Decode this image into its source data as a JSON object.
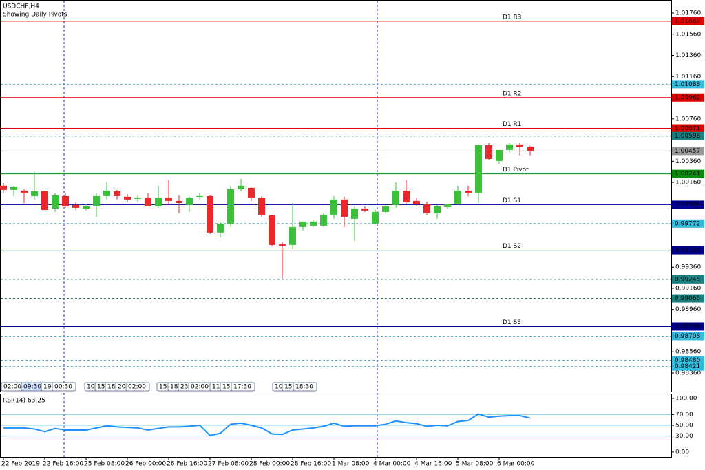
{
  "chart_data": [
    {
      "type": "candlestick",
      "title": "USDCHF,H4",
      "subtitle": "Showing Daily Pivots",
      "up_color": "#3cc03c",
      "down_color": "#e8282a",
      "ylim": [
        0.98178,
        1.01864
      ],
      "yticks": [
        {
          "value": 1.0176,
          "label": "1.01760"
        },
        {
          "value": 1.0156,
          "label": "1.01560"
        },
        {
          "value": 1.0136,
          "label": "1.01360"
        },
        {
          "value": 1.0116,
          "label": "1.01160"
        },
        {
          "value": 1.0076,
          "label": "1.00760"
        },
        {
          "value": 1.0036,
          "label": "1.00360"
        },
        {
          "value": 1.0016,
          "label": "1.00160"
        },
        {
          "value": 0.9936,
          "label": "0.99360"
        },
        {
          "value": 0.9916,
          "label": "0.99160"
        },
        {
          "value": 0.9896,
          "label": "0.98960"
        },
        {
          "value": 0.9856,
          "label": "0.98560"
        },
        {
          "value": 0.9836,
          "label": "0.98360"
        }
      ],
      "categories": [
        "22 Feb 2019",
        null,
        null,
        null,
        "22 Feb 16:00",
        null,
        null,
        null,
        "25 Feb 08:00",
        null,
        null,
        null,
        "26 Feb 00:00",
        null,
        null,
        null,
        "26 Feb 16:00",
        null,
        null,
        null,
        "27 Feb 08:00",
        null,
        null,
        null,
        "28 Feb 00:00",
        null,
        null,
        null,
        "28 Feb 16:00",
        null,
        null,
        null,
        "1 Mar 08:00",
        null,
        null,
        null,
        "4 Mar 00:00",
        null,
        null,
        null,
        "4 Mar 16:00",
        null,
        null,
        null,
        "5 Mar 08:00",
        null,
        null,
        null,
        "6 Mar 00:00",
        null,
        null,
        null
      ],
      "ohlc": [
        [
          1.00129,
          1.00155,
          1.00064,
          1.0009
        ],
        [
          1.0009,
          1.00129,
          1.00031,
          1.00116
        ],
        [
          1.00083,
          1.00096,
          0.99966,
          1.00064
        ],
        [
          1.00031,
          1.00259,
          0.99999,
          1.00077
        ],
        [
          1.00077,
          1.00083,
          0.99901,
          0.99901
        ],
        [
          0.99914,
          1.00064,
          0.99882,
          1.00038
        ],
        [
          1.00031,
          1.00064,
          0.99921,
          0.99934
        ],
        [
          0.99947,
          0.99973,
          0.99901,
          0.99921
        ],
        [
          0.99914,
          0.9996,
          0.99895,
          0.99934
        ],
        [
          0.99934,
          1.00064,
          0.99836,
          1.00031
        ],
        [
          1.00031,
          1.00161,
          0.99999,
          1.00083
        ],
        [
          1.00077,
          1.0009,
          0.99999,
          1.00031
        ],
        [
          1.00025,
          1.00051,
          0.99973,
          0.99999
        ],
        [
          1.00012,
          1.00038,
          0.99973,
          1.00012
        ],
        [
          1.00012,
          1.00064,
          0.99934,
          0.99934
        ],
        [
          0.99934,
          1.00129,
          0.99921,
          1.00012
        ],
        [
          1.00012,
          1.00181,
          0.99947,
          0.99986
        ],
        [
          0.99986,
          1.00038,
          0.99869,
          0.99966
        ],
        [
          0.99947,
          1.00025,
          0.99882,
          1.00012
        ],
        [
          1.00018,
          1.00064,
          0.99999,
          1.00031
        ],
        [
          1.00031,
          1.00044,
          0.99674,
          0.99687
        ],
        [
          0.99687,
          0.99791,
          0.99641,
          0.99771
        ],
        [
          0.99771,
          1.00129,
          0.99739,
          1.00096
        ],
        [
          1.00096,
          1.00194,
          1.00077,
          1.00129
        ],
        [
          1.00109,
          1.00116,
          0.99986,
          1.00012
        ],
        [
          1.00012,
          1.00031,
          0.99836,
          0.99856
        ],
        [
          0.99849,
          0.99856,
          0.99557,
          0.9957
        ],
        [
          0.99576,
          0.99596,
          0.99251,
          0.99563
        ],
        [
          0.9957,
          0.99966,
          0.99531,
          0.99739
        ],
        [
          0.99739,
          0.99791,
          0.99706,
          0.99791
        ],
        [
          0.99752,
          0.99804,
          0.99739,
          0.99791
        ],
        [
          0.99752,
          0.99869,
          0.99739,
          0.99856
        ],
        [
          0.99856,
          1.00031,
          0.99817,
          0.99999
        ],
        [
          0.99999,
          1.00025,
          0.99739,
          0.99836
        ],
        [
          0.99817,
          0.99934,
          0.99609,
          0.99914
        ],
        [
          0.99914,
          0.99934,
          0.99882,
          0.99895
        ],
        [
          0.99771,
          0.99901,
          0.99765,
          0.99882
        ],
        [
          0.99882,
          0.99947,
          0.99869,
          0.99934
        ],
        [
          0.99947,
          1.00161,
          0.99921,
          1.00083
        ],
        [
          1.00083,
          1.00181,
          0.9996,
          0.99973
        ],
        [
          0.99986,
          1.00012,
          0.99934,
          0.99953
        ],
        [
          0.99953,
          0.99979,
          0.99856,
          0.99869
        ],
        [
          0.99869,
          0.99947,
          0.99817,
          0.99934
        ],
        [
          0.99927,
          0.9996,
          0.99914,
          0.99953
        ],
        [
          0.9996,
          1.00129,
          0.99947,
          1.00083
        ],
        [
          1.00083,
          1.00129,
          1.00031,
          1.00064
        ],
        [
          1.00064,
          1.00519,
          0.99966,
          1.00512
        ],
        [
          1.00512,
          1.00532,
          1.00376,
          1.00382
        ],
        [
          1.00363,
          1.00467,
          1.00337,
          1.00467
        ],
        [
          1.00467,
          1.00532,
          1.00441,
          1.00519
        ],
        [
          1.00519,
          1.00532,
          1.00415,
          1.00499
        ],
        [
          1.00499,
          1.00506,
          1.00415,
          1.00457
        ]
      ],
      "levels": [
        {
          "name": "D1 R3",
          "value": 1.01683,
          "label": "1.01683",
          "color": "#e00000",
          "dashed": false
        },
        {
          "value": 1.01088,
          "label": "1.01088",
          "color": "#33bbdd",
          "dashed": true
        },
        {
          "name": "D1 R2",
          "value": 1.00962,
          "label": "1.00962",
          "color": "#e00000",
          "dashed": false
        },
        {
          "name": "D1 R1",
          "value": 1.00671,
          "label": "1.00671",
          "color": "#e00000",
          "dashed": false
        },
        {
          "value": 1.00598,
          "label": "1.00598",
          "color": "#1a8080",
          "dashed": true
        },
        {
          "value": 1.00457,
          "label": "1.00457",
          "color": "#999999",
          "dashed": false
        },
        {
          "name": "D1 Pivot",
          "value": 1.00241,
          "label": "1.00241",
          "color": "#0a8a0a",
          "dashed": false
        },
        {
          "name": "D1 S1",
          "value": 0.9995,
          "label": "0.99950",
          "color": "#000090",
          "dashed": false
        },
        {
          "value": 0.99772,
          "label": "0.99772",
          "color": "#33bbdd",
          "dashed": true
        },
        {
          "name": "D1 S2",
          "value": 0.9952,
          "label": "0.99520",
          "color": "#000090",
          "dashed": false
        },
        {
          "value": 0.99245,
          "label": "0.99245",
          "color": "#1a8080",
          "dashed": true
        },
        {
          "value": 0.99065,
          "label": "0.99065",
          "color": "#1a8080",
          "dashed": true
        },
        {
          "name": "D1 S3",
          "value": 0.98799,
          "label": "0.98799",
          "color": "#000090",
          "dashed": false
        },
        {
          "value": 0.98708,
          "label": "0.98708",
          "color": "#33bbdd",
          "dashed": true
        },
        {
          "value": 0.9848,
          "label": "0.98480",
          "color": "#33bbdd",
          "dashed": true
        },
        {
          "value": 0.98421,
          "label": "0.98421",
          "color": "#33bbdd",
          "dashed": true
        }
      ],
      "time_tags": [
        "02:00",
        "09:30",
        "19:",
        "00:30",
        "10:",
        "15:",
        "18:",
        "20:",
        "02:00",
        "15:",
        "18:",
        "23:",
        "02:00",
        "11:",
        "15:",
        "17:30",
        "10:",
        "15:",
        "18:30"
      ]
    },
    {
      "type": "line",
      "title": "RSI(14) 63.25",
      "color": "#1e90ff",
      "ylim": [
        -10.3,
        107.7
      ],
      "yticks": [
        {
          "value": 100,
          "label": "100.00"
        },
        {
          "value": 70,
          "label": "70.00"
        },
        {
          "value": 50,
          "label": "50.00"
        },
        {
          "value": 30,
          "label": "30.00"
        },
        {
          "value": 0,
          "label": "0.00"
        }
      ],
      "levels": [
        70,
        50,
        30
      ],
      "values": [
        45,
        45,
        45,
        43,
        38,
        44,
        41,
        41,
        41,
        45,
        49,
        47,
        46,
        45,
        41,
        44,
        47,
        47,
        48,
        50,
        31,
        35,
        52,
        54,
        50,
        45,
        34,
        33,
        41,
        43,
        45,
        48,
        54,
        48,
        49,
        49,
        49,
        52,
        58,
        55,
        53,
        48,
        50,
        49,
        57,
        59,
        71,
        65,
        67,
        68,
        68,
        63.25
      ]
    }
  ]
}
